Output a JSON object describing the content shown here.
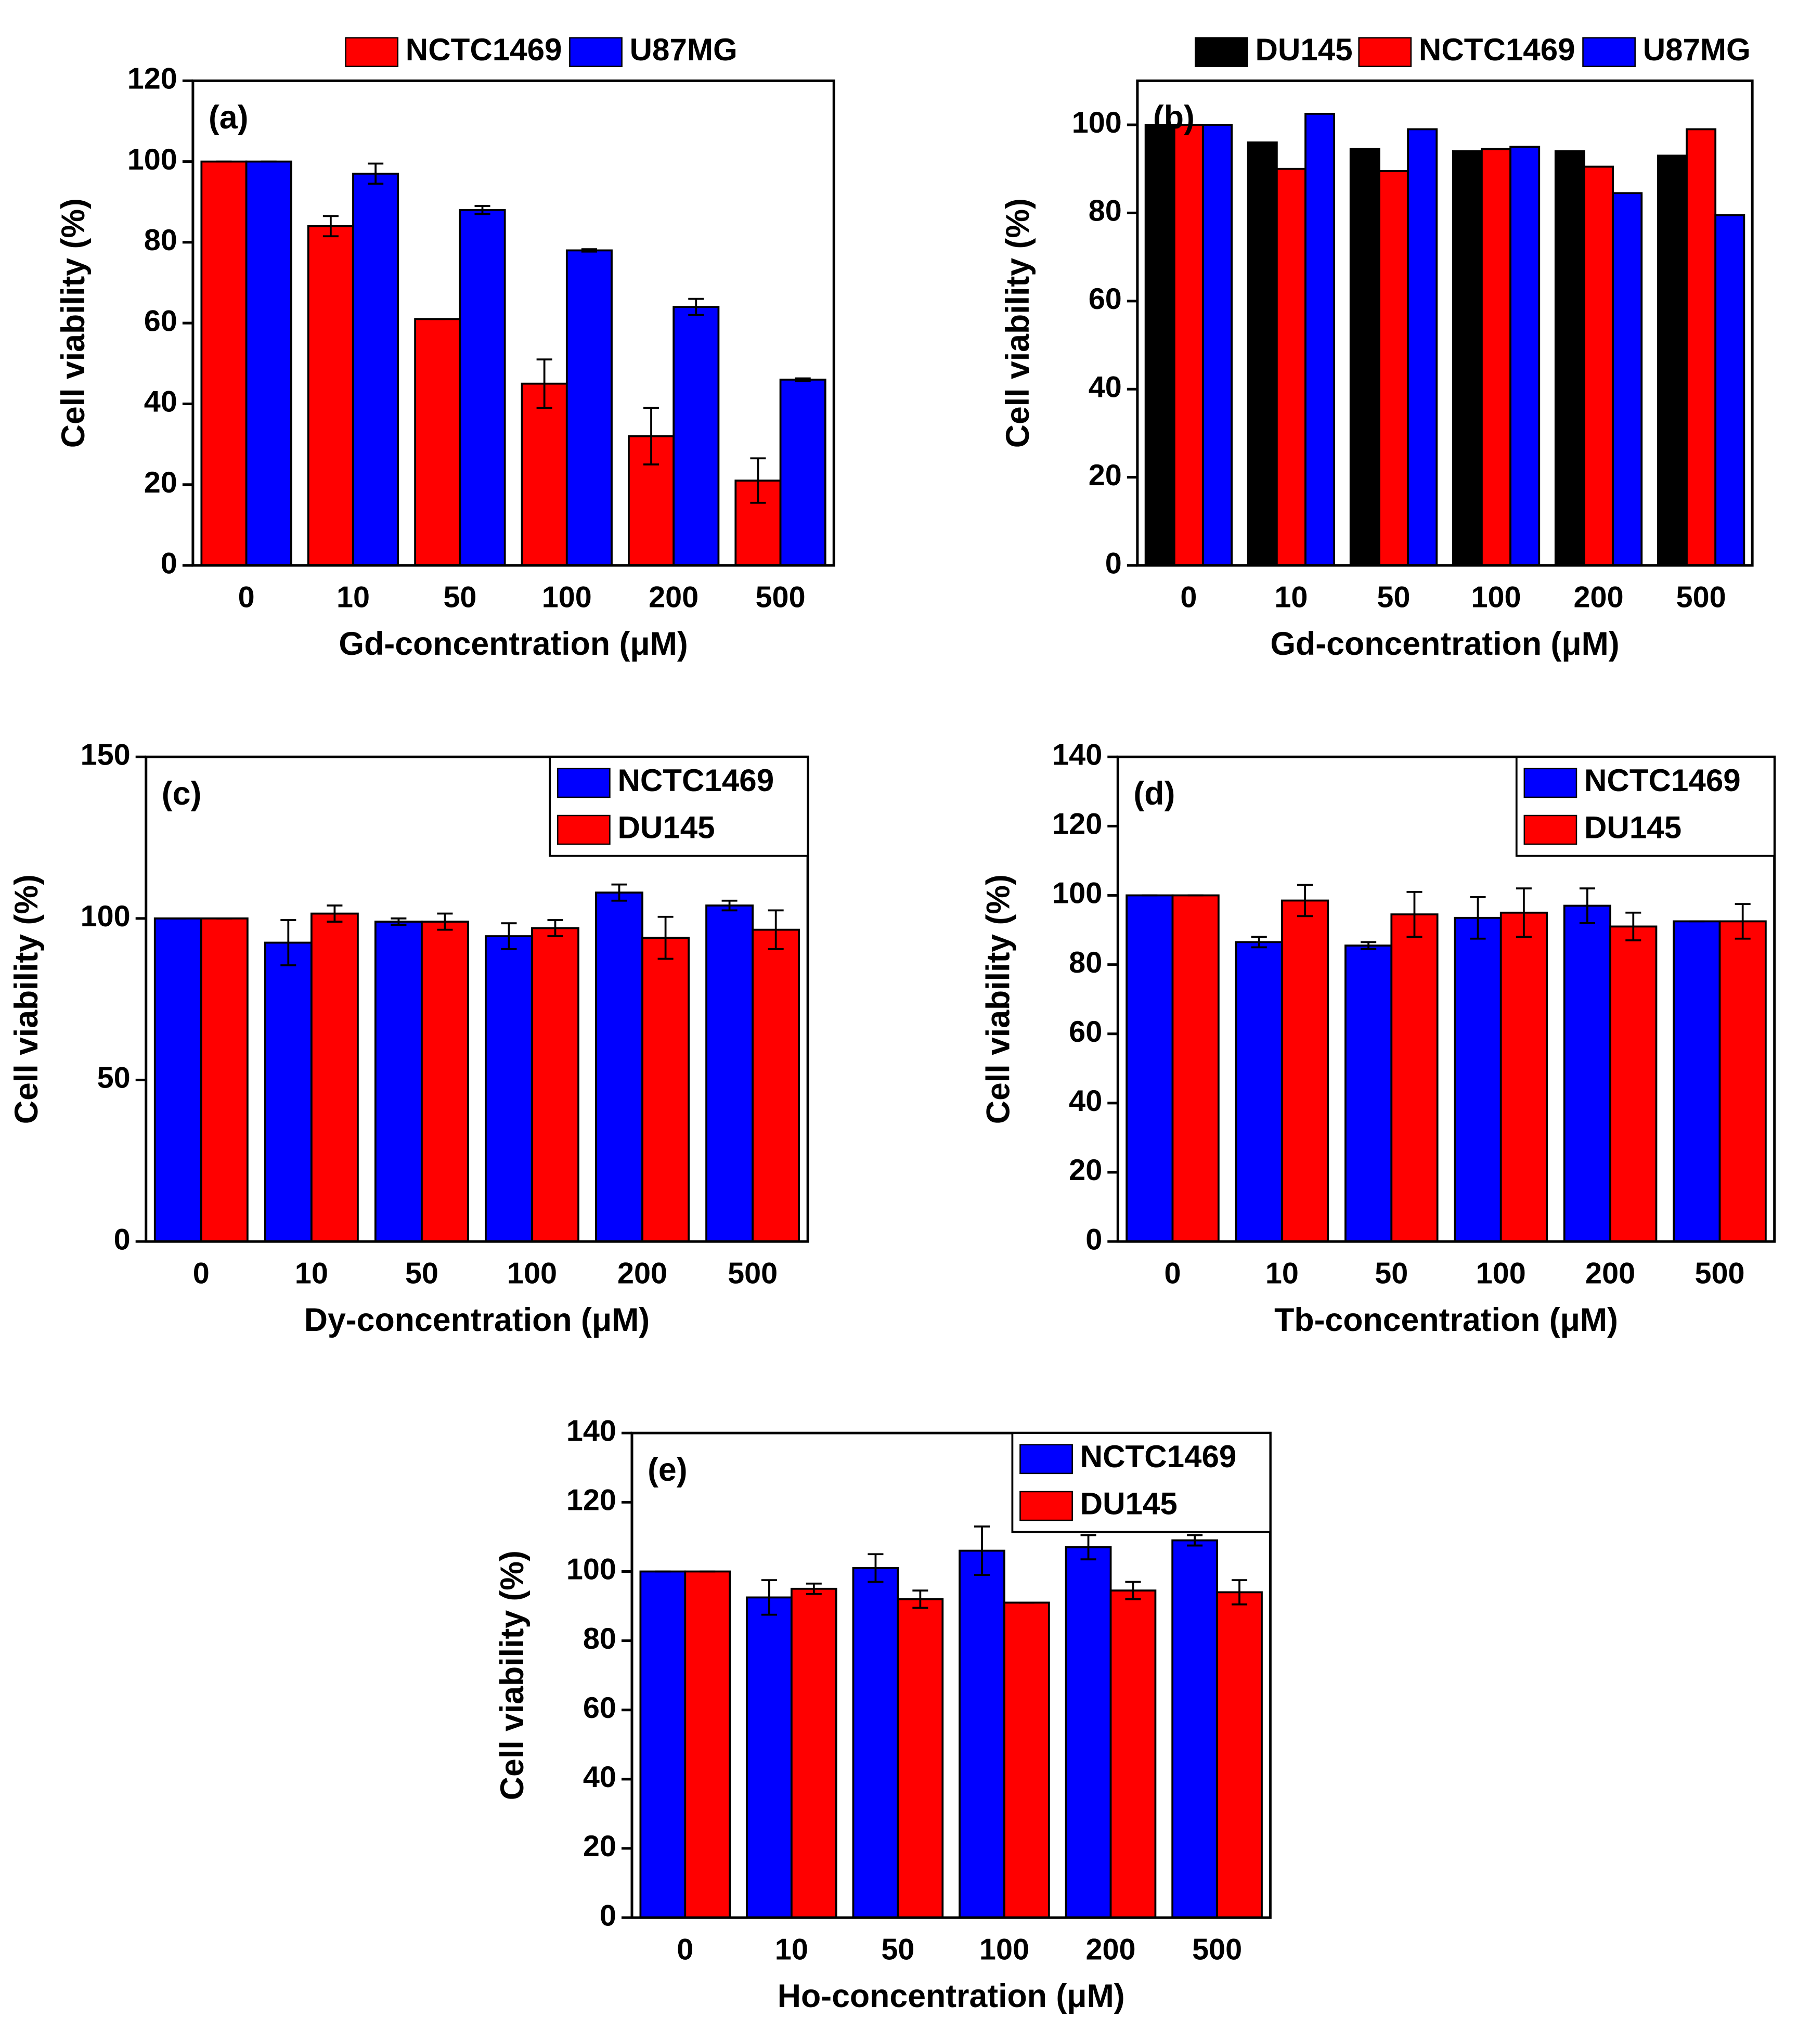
{
  "chart_data": [
    {
      "type": "bar",
      "label": "(a)",
      "xlabel": "Gd-concentration (μM)",
      "ylabel": "Cell viability (%)",
      "legend": "top",
      "categories": [
        "0",
        "10",
        "50",
        "100",
        "200",
        "500"
      ],
      "ylim": [
        0,
        120
      ],
      "yticks": [
        0,
        20,
        40,
        60,
        80,
        100,
        120
      ],
      "series": [
        {
          "name": "NCTC1469",
          "color": "#ff0000",
          "values": [
            100,
            84,
            61,
            45,
            32,
            21
          ],
          "errors": [
            0,
            2.5,
            0,
            6,
            7,
            5.5
          ]
        },
        {
          "name": "U87MG",
          "color": "#0000ff",
          "values": [
            100,
            97,
            88,
            78,
            64,
            46
          ],
          "errors": [
            0,
            2.5,
            1,
            0.3,
            2,
            0.3
          ]
        }
      ]
    },
    {
      "type": "bar",
      "label": "(b)",
      "xlabel": "Gd-concentration (μM)",
      "ylabel": "Cell viability (%)",
      "legend": "top",
      "categories": [
        "0",
        "10",
        "50",
        "100",
        "200",
        "500"
      ],
      "ylim": [
        0,
        110
      ],
      "yticks": [
        0,
        20,
        40,
        60,
        80,
        100
      ],
      "series": [
        {
          "name": "DU145",
          "color": "#000000",
          "values": [
            100,
            96,
            94.5,
            94,
            94,
            93
          ]
        },
        {
          "name": "NCTC1469",
          "color": "#ff0000",
          "values": [
            100,
            90,
            89.5,
            94.5,
            90.5,
            99
          ]
        },
        {
          "name": "U87MG",
          "color": "#0000ff",
          "values": [
            100,
            102.5,
            99,
            95,
            84.5,
            79.5
          ]
        }
      ]
    },
    {
      "type": "bar",
      "label": "(c)",
      "xlabel": "Dy-concentration (μM)",
      "ylabel": "Cell viability (%)",
      "legend": "upper right",
      "categories": [
        "0",
        "10",
        "50",
        "100",
        "200",
        "500"
      ],
      "ylim": [
        0,
        150
      ],
      "yticks": [
        0,
        50,
        100,
        150
      ],
      "series": [
        {
          "name": "NCTC1469",
          "color": "#0000ff",
          "values": [
            100,
            92.5,
            99,
            94.5,
            108,
            104
          ],
          "errors": [
            0,
            7,
            1,
            4,
            2.5,
            1.5
          ]
        },
        {
          "name": "DU145",
          "color": "#ff0000",
          "values": [
            100,
            101.5,
            99,
            97,
            94,
            96.5
          ],
          "errors": [
            0,
            2.5,
            2.5,
            2.5,
            6.5,
            6
          ]
        }
      ]
    },
    {
      "type": "bar",
      "label": "(d)",
      "xlabel": "Tb-concentration (μM)",
      "ylabel": "Cell viability (%)",
      "legend": "upper right",
      "categories": [
        "0",
        "10",
        "50",
        "100",
        "200",
        "500"
      ],
      "ylim": [
        0,
        140
      ],
      "yticks": [
        0,
        20,
        40,
        60,
        80,
        100,
        120,
        140
      ],
      "series": [
        {
          "name": "NCTC1469",
          "color": "#0000ff",
          "values": [
            100,
            86.5,
            85.5,
            93.5,
            97,
            92.5
          ],
          "errors": [
            0,
            1.5,
            1,
            6,
            5,
            0
          ]
        },
        {
          "name": "DU145",
          "color": "#ff0000",
          "values": [
            100,
            98.5,
            94.5,
            95,
            91,
            92.5
          ],
          "errors": [
            0,
            4.5,
            6.5,
            7,
            4,
            5
          ]
        }
      ]
    },
    {
      "type": "bar",
      "label": "(e)",
      "xlabel": "Ho-concentration (μM)",
      "ylabel": "Cell viability (%)",
      "legend": "upper right",
      "categories": [
        "0",
        "10",
        "50",
        "100",
        "200",
        "500"
      ],
      "ylim": [
        0,
        140
      ],
      "yticks": [
        0,
        20,
        40,
        60,
        80,
        100,
        120,
        140
      ],
      "series": [
        {
          "name": "NCTC1469",
          "color": "#0000ff",
          "values": [
            100,
            92.5,
            101,
            106,
            107,
            109
          ],
          "errors": [
            0,
            5,
            4,
            7,
            3.5,
            1.5
          ]
        },
        {
          "name": "DU145",
          "color": "#ff0000",
          "values": [
            100,
            95,
            92,
            91,
            94.5,
            94
          ],
          "errors": [
            0,
            1.5,
            2.5,
            0,
            2.5,
            3.5
          ]
        }
      ]
    }
  ]
}
